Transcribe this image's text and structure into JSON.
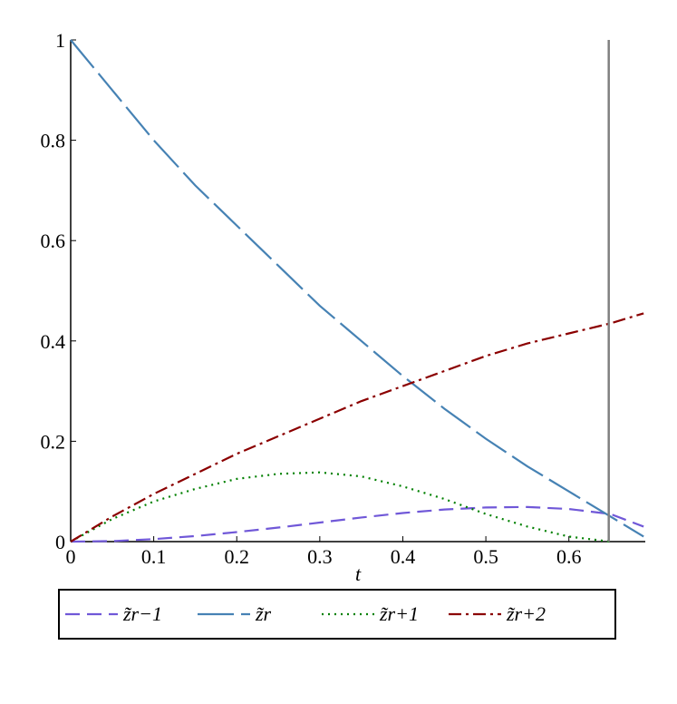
{
  "chart_data": {
    "type": "line",
    "x_label": "t",
    "x": [
      0,
      0.05,
      0.1,
      0.15,
      0.2,
      0.25,
      0.3,
      0.35,
      0.4,
      0.45,
      0.5,
      0.55,
      0.6,
      0.65,
      0.69
    ],
    "series": [
      {
        "name": "z̃r−1",
        "color": "#7058d8",
        "dash": "16 8",
        "values": [
          0,
          0.001,
          0.005,
          0.011,
          0.019,
          0.028,
          0.038,
          0.048,
          0.057,
          0.064,
          0.068,
          0.069,
          0.065,
          0.055,
          0.03
        ]
      },
      {
        "name": "z̃r",
        "color": "#4682b4",
        "dash": "40 8",
        "values": [
          1,
          0.9,
          0.8,
          0.71,
          0.63,
          0.55,
          0.47,
          0.4,
          0.33,
          0.265,
          0.205,
          0.15,
          0.1,
          0.05,
          0.01
        ]
      },
      {
        "name": "z̃r+1",
        "color": "#008000",
        "dash": "2 5",
        "values": [
          0,
          0.045,
          0.08,
          0.105,
          0.125,
          0.135,
          0.138,
          0.13,
          0.11,
          0.085,
          0.055,
          0.03,
          0.01,
          0,
          null
        ]
      },
      {
        "name": "z̃r+2",
        "color": "#8b0000",
        "dash": "14 5 3 5",
        "values": [
          0,
          0.05,
          0.095,
          0.135,
          0.175,
          0.21,
          0.245,
          0.28,
          0.31,
          0.34,
          0.37,
          0.395,
          0.415,
          0.435,
          0.455
        ]
      }
    ],
    "vline": {
      "x": 0.648,
      "color": "#808080"
    },
    "xlim": [
      0,
      0.692
    ],
    "ylim": [
      0,
      1
    ],
    "xticks": [
      0,
      0.1,
      0.2,
      0.3,
      0.4,
      0.5,
      0.6
    ],
    "yticks": [
      0,
      0.2,
      0.4,
      0.6,
      0.8,
      1
    ],
    "legend": "bottom"
  }
}
